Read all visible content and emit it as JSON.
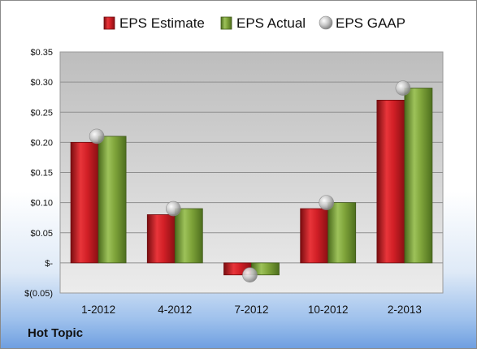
{
  "company": "Hot Topic",
  "colors": {
    "estimate": "#d11f26",
    "actual": "#7fa43a",
    "gaap": "#b8b8b8"
  },
  "chart_data": {
    "type": "bar",
    "categories": [
      "1-2012",
      "4-2012",
      "7-2012",
      "10-2012",
      "2-2013"
    ],
    "series": [
      {
        "name": "EPS Estimate",
        "values": [
          0.2,
          0.08,
          -0.02,
          0.09,
          0.27
        ]
      },
      {
        "name": "EPS Actual",
        "values": [
          0.21,
          0.09,
          -0.02,
          0.1,
          0.29
        ]
      },
      {
        "name": "EPS GAAP",
        "marker": "circle",
        "values": [
          0.21,
          0.09,
          -0.02,
          0.1,
          0.29
        ]
      }
    ],
    "ylim": [
      -0.05,
      0.35
    ],
    "yticks": [
      {
        "value": 0.35,
        "label": "$0.35"
      },
      {
        "value": 0.3,
        "label": "$0.30"
      },
      {
        "value": 0.25,
        "label": "$0.25"
      },
      {
        "value": 0.2,
        "label": "$0.20"
      },
      {
        "value": 0.15,
        "label": "$0.15"
      },
      {
        "value": 0.1,
        "label": "$0.10"
      },
      {
        "value": 0.05,
        "label": "$0.05"
      },
      {
        "value": 0.0,
        "label": "$-"
      },
      {
        "value": -0.05,
        "label": "$(0.05)"
      }
    ],
    "grid": true,
    "legend_position": "top"
  }
}
